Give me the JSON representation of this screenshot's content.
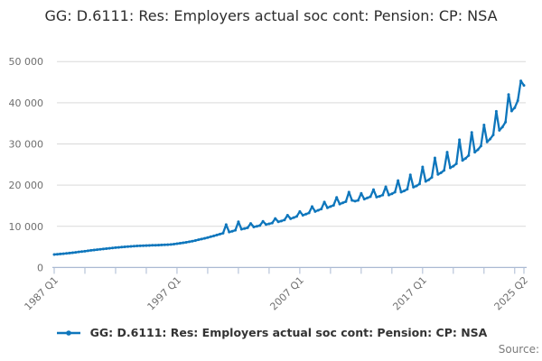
{
  "title": "GG: D.6111: Res: Employers actual soc cont: Pension: CP: NSA",
  "legend": {
    "label": "GG: D.6111: Res: Employers actual soc cont: Pension: CP: NSA"
  },
  "source_label": "Source:",
  "colors": {
    "line": "#0e76bc",
    "grid": "#d9d9d9",
    "axis": "#aab9d2",
    "tick_text": "#6f6f6f",
    "title_text": "#2d2d2d",
    "legend_text": "#333333",
    "source_text": "#7b7b7b"
  },
  "chart_data": {
    "type": "line",
    "title": "GG: D.6111: Res: Employers actual soc cont: Pension: CP: NSA",
    "series_name": "GG: D.6111: Res: Employers actual soc cont: Pension: CP: NSA",
    "frequency": "quarterly",
    "x_start": "1987 Q1",
    "x_end": "2025 Q2",
    "ylim": [
      0,
      50000
    ],
    "grid": "horizontal",
    "legend_position": "bottom",
    "y_ticks": [
      {
        "value": 0,
        "label": "0"
      },
      {
        "value": 10000,
        "label": "10 000"
      },
      {
        "value": 20000,
        "label": "20 000"
      },
      {
        "value": 30000,
        "label": "30 000"
      },
      {
        "value": 40000,
        "label": "40 000"
      },
      {
        "value": 50000,
        "label": "50 000"
      }
    ],
    "x_major_ticks": [
      {
        "index": 0,
        "label": "1987 Q1"
      },
      {
        "index": 40,
        "label": "1997 Q1"
      },
      {
        "index": 80,
        "label": "2007 Q1"
      },
      {
        "index": 120,
        "label": "2017 Q1"
      },
      {
        "index": 153,
        "label": "2025 Q2"
      }
    ],
    "minor_tick_indices": [
      0,
      10,
      20,
      30,
      40,
      50,
      60,
      70,
      80,
      90,
      100,
      110,
      120,
      130,
      140,
      150,
      153
    ],
    "values": [
      3150,
      3220,
      3280,
      3350,
      3420,
      3500,
      3580,
      3680,
      3780,
      3870,
      3960,
      4060,
      4160,
      4240,
      4330,
      4420,
      4510,
      4580,
      4660,
      4740,
      4820,
      4880,
      4950,
      5020,
      5080,
      5130,
      5180,
      5230,
      5270,
      5300,
      5330,
      5360,
      5390,
      5410,
      5440,
      5470,
      5510,
      5550,
      5600,
      5680,
      5780,
      5880,
      5990,
      6120,
      6260,
      6400,
      6560,
      6730,
      6900,
      7080,
      7270,
      7470,
      7680,
      7890,
      8110,
      8340,
      10400,
      8600,
      8800,
      9050,
      11100,
      9300,
      9450,
      9650,
      10700,
      9850,
      10000,
      10200,
      11200,
      10450,
      10600,
      10800,
      11900,
      11100,
      11300,
      11550,
      12700,
      11850,
      12100,
      12400,
      13600,
      12700,
      12950,
      13250,
      14800,
      13600,
      13900,
      14200,
      15900,
      14500,
      14800,
      15100,
      17000,
      15400,
      15700,
      16000,
      18300,
      16300,
      16100,
      16300,
      18000,
      16600,
      16900,
      17200,
      18900,
      17100,
      17300,
      17600,
      19600,
      17600,
      17900,
      18300,
      21100,
      18300,
      18600,
      19000,
      22500,
      19500,
      19800,
      20300,
      24400,
      20900,
      21300,
      21900,
      26600,
      22600,
      23000,
      23600,
      28000,
      24200,
      24600,
      25200,
      31000,
      26000,
      26500,
      27200,
      32800,
      28000,
      28600,
      29500,
      34600,
      30500,
      31200,
      32200,
      37900,
      33300,
      34100,
      35300,
      42000,
      38000,
      38800,
      40500,
      45300,
      44200
    ]
  }
}
